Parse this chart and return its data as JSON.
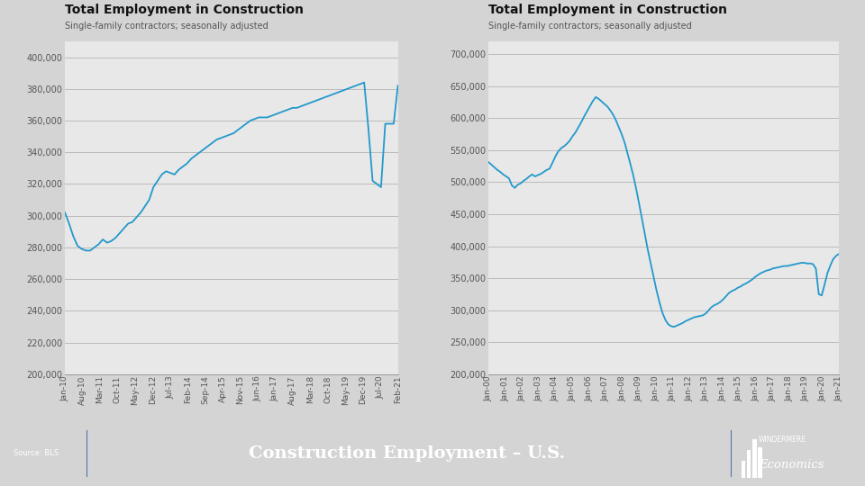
{
  "title1": "Total Employment in Construction",
  "subtitle1": "Single-family contractors; seasonally adjusted",
  "title2": "Total Employment in Construction",
  "subtitle2": "Single-family contractors; seasonally adjusted",
  "footer_title": "Construction Employment – U.S.",
  "footer_source": "Source: BLS",
  "footer_bg": "#1b3a5c",
  "outer_bg": "#d4d4d4",
  "plot_bg": "#e8e8e8",
  "grid_color": "#bbbbbb",
  "line_color": "#2299cc",
  "line_width": 1.3,
  "chart1_ylim": [
    200000,
    410000
  ],
  "chart1_yticks": [
    200000,
    220000,
    240000,
    260000,
    280000,
    300000,
    320000,
    340000,
    360000,
    380000,
    400000
  ],
  "chart2_ylim": [
    200000,
    720000
  ],
  "chart2_yticks": [
    200000,
    250000,
    300000,
    350000,
    400000,
    450000,
    500000,
    550000,
    600000,
    650000,
    700000
  ],
  "chart1_xticks": [
    "Jan-10",
    "Aug-10",
    "Mar-11",
    "Oct-11",
    "May-12",
    "Dec-12",
    "Jul-13",
    "Feb-14",
    "Sep-14",
    "Apr-15",
    "Nov-15",
    "Jun-16",
    "Jan-17",
    "Aug-17",
    "Mar-18",
    "Oct-18",
    "May-19",
    "Dec-19",
    "Jul-20",
    "Feb-21"
  ],
  "chart2_xticks": [
    "Jan-00",
    "Jan-01",
    "Jan-02",
    "Jan-03",
    "Jan-04",
    "Jan-05",
    "Jan-06",
    "Jan-07",
    "Jan-08",
    "Jan-09",
    "Jan-10",
    "Jan-11",
    "Jan-12",
    "Jan-13",
    "Jan-14",
    "Jan-15",
    "Jan-16",
    "Jan-17",
    "Jan-18",
    "Jan-19",
    "Jan-20",
    "Jan-21"
  ],
  "chart1_data": [
    302000,
    295000,
    287000,
    281000,
    279000,
    278000,
    278000,
    280000,
    282000,
    285000,
    283000,
    284000,
    286000,
    289000,
    292000,
    295000,
    296000,
    299000,
    302000,
    306000,
    310000,
    318000,
    322000,
    326000,
    328000,
    327000,
    326000,
    329000,
    331000,
    333000,
    336000,
    338000,
    340000,
    342000,
    344000,
    346000,
    348000,
    349000,
    350000,
    351000,
    352000,
    354000,
    356000,
    358000,
    360000,
    361000,
    362000,
    362000,
    362000,
    363000,
    364000,
    365000,
    366000,
    367000,
    368000,
    368000,
    369000,
    370000,
    371000,
    372000,
    373000,
    374000,
    375000,
    376000,
    377000,
    378000,
    379000,
    380000,
    381000,
    382000,
    383000,
    384000,
    355000,
    322000,
    320000,
    318000,
    358000,
    358000,
    358000,
    382000
  ],
  "chart2_data": [
    531000,
    527000,
    523000,
    519000,
    516000,
    512000,
    509000,
    506000,
    495000,
    491000,
    496000,
    498000,
    502000,
    505000,
    509000,
    512000,
    509000,
    511000,
    513000,
    516000,
    519000,
    521000,
    530000,
    540000,
    548000,
    553000,
    556000,
    560000,
    565000,
    572000,
    578000,
    586000,
    594000,
    603000,
    611000,
    619000,
    627000,
    633000,
    630000,
    626000,
    622000,
    618000,
    612000,
    605000,
    596000,
    585000,
    574000,
    561000,
    544000,
    527000,
    509000,
    488000,
    465000,
    441000,
    417000,
    393000,
    372000,
    351000,
    330000,
    312000,
    296000,
    285000,
    278000,
    275000,
    274000,
    276000,
    278000,
    280000,
    283000,
    285000,
    287000,
    289000,
    290000,
    291000,
    292000,
    295000,
    300000,
    305000,
    308000,
    310000,
    313000,
    317000,
    322000,
    327000,
    330000,
    332000,
    335000,
    337000,
    340000,
    342000,
    345000,
    348000,
    352000,
    355000,
    358000,
    360000,
    362000,
    363000,
    365000,
    366000,
    367000,
    368000,
    369000,
    369000,
    370000,
    371000,
    372000,
    373000,
    374000,
    374000,
    373000,
    373000,
    372000,
    365000,
    325000,
    323000,
    340000,
    358000,
    370000,
    380000,
    385000,
    388000
  ]
}
